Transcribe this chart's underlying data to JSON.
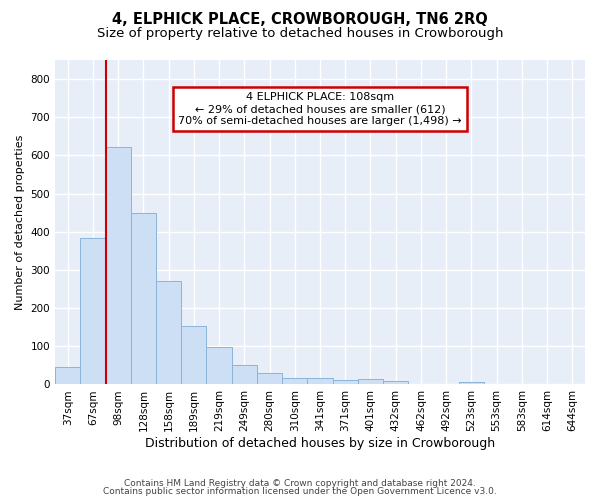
{
  "title": "4, ELPHICK PLACE, CROWBOROUGH, TN6 2RQ",
  "subtitle": "Size of property relative to detached houses in Crowborough",
  "xlabel": "Distribution of detached houses by size in Crowborough",
  "ylabel": "Number of detached properties",
  "footer_line1": "Contains HM Land Registry data © Crown copyright and database right 2024.",
  "footer_line2": "Contains public sector information licensed under the Open Government Licence v3.0.",
  "bar_labels": [
    "37sqm",
    "67sqm",
    "98sqm",
    "128sqm",
    "158sqm",
    "189sqm",
    "219sqm",
    "249sqm",
    "280sqm",
    "310sqm",
    "341sqm",
    "371sqm",
    "401sqm",
    "432sqm",
    "462sqm",
    "492sqm",
    "523sqm",
    "553sqm",
    "583sqm",
    "614sqm",
    "644sqm"
  ],
  "bar_values": [
    46,
    383,
    623,
    448,
    270,
    153,
    98,
    52,
    29,
    17,
    16,
    11,
    15,
    8,
    0,
    0,
    7,
    0,
    0,
    0,
    0
  ],
  "bar_color": "#ccdff5",
  "bar_edge_color": "#8ab4d8",
  "background_color": "#e8eef8",
  "grid_color": "#ffffff",
  "figure_bg": "#ffffff",
  "annotation_line1": "4 ELPHICK PLACE: 108sqm",
  "annotation_line2": "← 29% of detached houses are smaller (612)",
  "annotation_line3": "70% of semi-detached houses are larger (1,498) →",
  "annotation_box_color": "#ffffff",
  "annotation_box_edge_color": "#cc0000",
  "red_line_color": "#cc0000",
  "ylim": [
    0,
    850
  ],
  "yticks": [
    0,
    100,
    200,
    300,
    400,
    500,
    600,
    700,
    800
  ],
  "title_fontsize": 10.5,
  "subtitle_fontsize": 9.5,
  "xlabel_fontsize": 9,
  "ylabel_fontsize": 8,
  "tick_fontsize": 7.5,
  "annotation_fontsize": 8,
  "footer_fontsize": 6.5
}
